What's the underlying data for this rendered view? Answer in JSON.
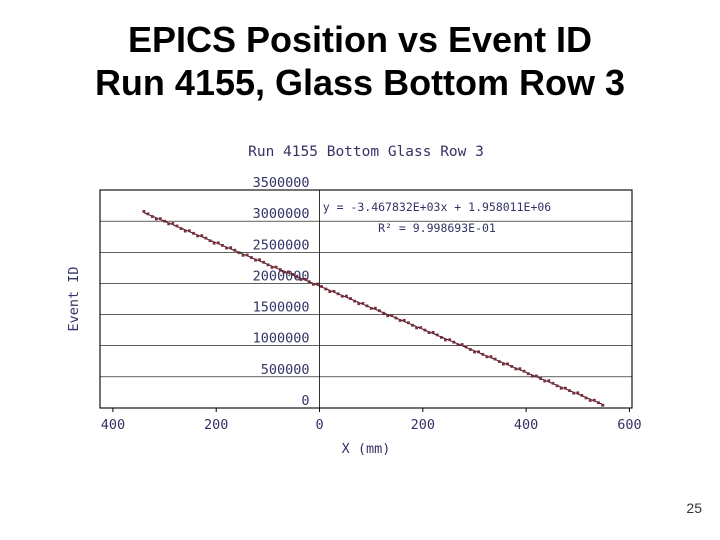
{
  "slide": {
    "title_line1": "EPICS Position vs Event ID",
    "title_line2": "Run 4155, Glass Bottom Row 3",
    "page_number": "25"
  },
  "chart_data": {
    "type": "scatter",
    "title": "Run 4155 Bottom Glass Row 3",
    "xlabel": "X (mm)",
    "ylabel": "Event ID",
    "equation_line1": "y = -3.467832E+03x + 1.958011E+06",
    "equation_line2": "R² = 9.998693E-01",
    "xlim": [
      -425,
      605
    ],
    "ylim": [
      0,
      3500000
    ],
    "grid": "horizontal",
    "legend": "none",
    "x_ticks": [
      {
        "value": -400,
        "label": "400"
      },
      {
        "value": -200,
        "label": "200"
      },
      {
        "value": 0,
        "label": "0"
      },
      {
        "value": 200,
        "label": "200"
      },
      {
        "value": 400,
        "label": "400"
      },
      {
        "value": 600,
        "label": "600"
      }
    ],
    "y_ticks": [
      {
        "value": 0,
        "label": "0"
      },
      {
        "value": 500000,
        "label": "500000"
      },
      {
        "value": 1000000,
        "label": "1000000"
      },
      {
        "value": 1500000,
        "label": "1500000"
      },
      {
        "value": 2000000,
        "label": "2000000"
      },
      {
        "value": 2500000,
        "label": "2500000"
      },
      {
        "value": 3000000,
        "label": "3000000"
      },
      {
        "value": 3500000,
        "label": "3500000"
      }
    ],
    "fit": {
      "slope": -3467.832,
      "intercept": 1958011,
      "r_squared": 0.9998693
    },
    "data_x_range": [
      -340,
      552
    ],
    "point_step": 8,
    "sample_points": [
      [
        -340,
        3137074
      ],
      [
        -300,
        2998361
      ],
      [
        -250,
        2824969
      ],
      [
        -200,
        2651577
      ],
      [
        -150,
        2478186
      ],
      [
        -100,
        2304794
      ],
      [
        -50,
        2131403
      ],
      [
        0,
        1958011
      ],
      [
        50,
        1784619
      ],
      [
        100,
        1611228
      ],
      [
        150,
        1437836
      ],
      [
        200,
        1264445
      ],
      [
        250,
        1091053
      ],
      [
        300,
        917661
      ],
      [
        350,
        744270
      ],
      [
        400,
        570878
      ],
      [
        450,
        397487
      ],
      [
        500,
        224095
      ],
      [
        550,
        50704
      ]
    ],
    "colors": {
      "text": "#333366",
      "points": "#7e2a3a",
      "line": "#1a1a1a",
      "grid": "#000000"
    }
  }
}
